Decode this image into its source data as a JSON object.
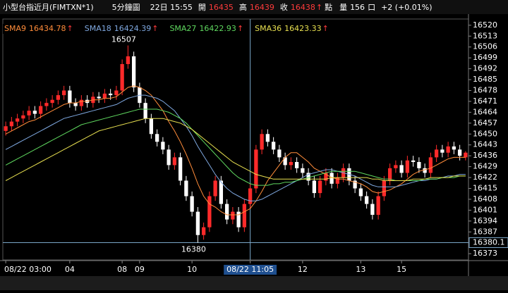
{
  "chart_data": {
    "type": "candlestick",
    "title": "小型台指近月(FIMTXN*1)",
    "period": "5分鐘圖",
    "time": "22日 15:55",
    "quote": [
      {
        "label": "開",
        "value": 16435
      },
      {
        "label": "高",
        "value": 16439
      },
      {
        "label": "收",
        "value": 16438,
        "arrow": "↑"
      }
    ],
    "point_unit": "點",
    "volume_label": "量",
    "volume": 156,
    "volume_unit": "口",
    "change": "+2 (+0.01%)",
    "up_color": "#ff2a2a",
    "down_color": "#ffffff",
    "open": [
      16452,
      16455,
      16458,
      16460,
      16462,
      16465,
      16463,
      16468,
      16470,
      16472,
      16475,
      16478,
      16470,
      16468,
      16472,
      16470,
      16474,
      16473,
      16476,
      16475,
      16478,
      16495,
      16500,
      16480,
      16470,
      16460,
      16450,
      16445,
      16440,
      16430,
      16435,
      16420,
      16410,
      16400,
      16385,
      16390,
      16410,
      16420,
      16405,
      16395,
      16400,
      16390,
      16405,
      16415,
      16440,
      16450,
      16445,
      16440,
      16435,
      16430,
      16432,
      16428,
      16425,
      16420,
      16412,
      16420,
      16425,
      16418,
      16422,
      16428,
      16420,
      16415,
      16410,
      16405,
      16398,
      16410,
      16420,
      16428,
      16430,
      16425,
      16433,
      16432,
      16428,
      16425,
      16435,
      16440,
      16438,
      16442,
      16440,
      16435
    ],
    "high": [
      16458,
      16461,
      16463,
      16465,
      16468,
      16468,
      16471,
      16473,
      16475,
      16478,
      16481,
      16481,
      16473,
      16475,
      16475,
      16477,
      16477,
      16479,
      16479,
      16481,
      16498,
      16507,
      16503,
      16483,
      16473,
      16463,
      16453,
      16448,
      16443,
      16438,
      16438,
      16423,
      16413,
      16403,
      16393,
      16413,
      16423,
      16423,
      16408,
      16403,
      16403,
      16408,
      16418,
      16443,
      16453,
      16453,
      16448,
      16443,
      16438,
      16435,
      16435,
      16431,
      16428,
      16423,
      16423,
      16428,
      16428,
      16425,
      16431,
      16431,
      16423,
      16418,
      16413,
      16408,
      16413,
      16423,
      16431,
      16433,
      16433,
      16436,
      16436,
      16435,
      16431,
      16438,
      16443,
      16443,
      16445,
      16445,
      16443,
      16439
    ],
    "low": [
      16449,
      16452,
      16455,
      16457,
      16459,
      16460,
      16460,
      16465,
      16467,
      16469,
      16472,
      16467,
      16465,
      16465,
      16467,
      16467,
      16470,
      16470,
      16472,
      16472,
      16475,
      16492,
      16477,
      16467,
      16457,
      16447,
      16442,
      16437,
      16427,
      16427,
      16417,
      16407,
      16397,
      16380,
      16382,
      16387,
      16407,
      16402,
      16392,
      16392,
      16387,
      16387,
      16402,
      16412,
      16437,
      16442,
      16437,
      16432,
      16427,
      16427,
      16425,
      16422,
      16417,
      16409,
      16409,
      16417,
      16415,
      16415,
      16419,
      16417,
      16412,
      16407,
      16402,
      16395,
      16395,
      16407,
      16417,
      16425,
      16422,
      16422,
      16429,
      16425,
      16422,
      16422,
      16432,
      16435,
      16435,
      16437,
      16433,
      16433
    ],
    "close": [
      16455,
      16458,
      16460,
      16462,
      16465,
      16463,
      16468,
      16470,
      16472,
      16475,
      16478,
      16470,
      16468,
      16472,
      16470,
      16474,
      16473,
      16476,
      16475,
      16478,
      16495,
      16500,
      16480,
      16470,
      16460,
      16450,
      16445,
      16440,
      16430,
      16435,
      16420,
      16410,
      16400,
      16385,
      16390,
      16410,
      16420,
      16405,
      16395,
      16400,
      16390,
      16405,
      16415,
      16440,
      16450,
      16445,
      16440,
      16435,
      16430,
      16432,
      16428,
      16425,
      16420,
      16412,
      16420,
      16425,
      16418,
      16422,
      16428,
      16420,
      16415,
      16410,
      16405,
      16398,
      16410,
      16420,
      16428,
      16430,
      16425,
      16433,
      16432,
      16428,
      16425,
      16435,
      16440,
      16438,
      16442,
      16440,
      16436,
      16438
    ],
    "series": [
      {
        "name": "SMA9",
        "legend_value": 16434.78,
        "arrow": "↑",
        "color": "#ff8c3a",
        "values": [
          16450,
          16452,
          16454,
          16456,
          16458,
          16459,
          16461,
          16463,
          16465,
          16467,
          16469,
          16470,
          16470,
          16471,
          16471,
          16472,
          16472,
          16473,
          16473,
          16474,
          16477,
          16480,
          16481,
          16480,
          16478,
          16475,
          16470,
          16465,
          16458,
          16452,
          16445,
          16437,
          16428,
          16418,
          16410,
          16405,
          16403,
          16400,
          16398,
          16398,
          16398,
          16400,
          16402,
          16407,
          16413,
          16420,
          16425,
          16430,
          16435,
          16438,
          16438,
          16435,
          16432,
          16428,
          16426,
          16424,
          16422,
          16421,
          16421,
          16420,
          16419,
          16418,
          16416,
          16413,
          16412,
          16413,
          16414,
          16416,
          16418,
          16421,
          16424,
          16426,
          16427,
          16428,
          16430,
          16432,
          16434,
          16435,
          16435,
          16435
        ]
      },
      {
        "name": "SMA18",
        "legend_value": 16424.39,
        "arrow": "↑",
        "color": "#7fa8e0",
        "values": [
          16440,
          16442,
          16444,
          16446,
          16448,
          16450,
          16452,
          16454,
          16456,
          16458,
          16460,
          16461,
          16462,
          16463,
          16464,
          16465,
          16466,
          16467,
          16468,
          16469,
          16471,
          16473,
          16474,
          16475,
          16475,
          16474,
          16473,
          16471,
          16468,
          16465,
          16460,
          16455,
          16449,
          16442,
          16436,
          16430,
          16424,
          16419,
          16415,
          16412,
          16410,
          16408,
          16407,
          16407,
          16408,
          16410,
          16412,
          16414,
          16416,
          16418,
          16420,
          16422,
          16424,
          16425,
          16426,
          16427,
          16427,
          16426,
          16425,
          16424,
          16423,
          16421,
          16419,
          16417,
          16416,
          16416,
          16416,
          16416,
          16417,
          16418,
          16419,
          16420,
          16420,
          16421,
          16421,
          16422,
          16423,
          16423,
          16424,
          16424
        ]
      },
      {
        "name": "SMA27",
        "legend_value": 16422.93,
        "arrow": "↑",
        "color": "#5fd85f",
        "values": [
          16430,
          16432,
          16434,
          16436,
          16438,
          16440,
          16442,
          16444,
          16446,
          16448,
          16450,
          16452,
          16454,
          16456,
          16457,
          16458,
          16459,
          16460,
          16461,
          16462,
          16463,
          16464,
          16465,
          16466,
          16466,
          16466,
          16466,
          16465,
          16464,
          16462,
          16460,
          16457,
          16453,
          16449,
          16445,
          16441,
          16437,
          16433,
          16429,
          16425,
          16422,
          16420,
          16418,
          16417,
          16417,
          16417,
          16418,
          16418,
          16419,
          16419,
          16420,
          16421,
          16422,
          16423,
          16424,
          16425,
          16426,
          16426,
          16426,
          16426,
          16426,
          16425,
          16424,
          16423,
          16422,
          16421,
          16421,
          16420,
          16420,
          16420,
          16420,
          16420,
          16421,
          16421,
          16421,
          16422,
          16422,
          16422,
          16423,
          16423
        ]
      },
      {
        "name": "SMA36",
        "legend_value": 16423.33,
        "arrow": "↑",
        "color": "#e8e050",
        "values": [
          16420,
          16422,
          16424,
          16426,
          16428,
          16430,
          16432,
          16434,
          16436,
          16438,
          16440,
          16442,
          16444,
          16446,
          16448,
          16450,
          16452,
          16453,
          16454,
          16455,
          16456,
          16457,
          16458,
          16459,
          16460,
          16460,
          16460,
          16460,
          16459,
          16458,
          16457,
          16455,
          16453,
          16450,
          16447,
          16444,
          16441,
          16438,
          16435,
          16432,
          16430,
          16428,
          16426,
          16424,
          16423,
          16422,
          16421,
          16421,
          16421,
          16421,
          16421,
          16421,
          16421,
          16421,
          16421,
          16421,
          16422,
          16422,
          16422,
          16422,
          16422,
          16422,
          16422,
          16421,
          16421,
          16420,
          16420,
          16420,
          16420,
          16420,
          16421,
          16421,
          16421,
          16422,
          16422,
          16422,
          16422,
          16423,
          16423,
          16423
        ]
      }
    ],
    "annotations": [
      {
        "x": 21,
        "value": 16507
      },
      {
        "x": 33,
        "value": 16380
      }
    ],
    "crosshair": {
      "x": 42,
      "y": 16380.1
    },
    "xlim": [
      -0.5,
      79.5
    ],
    "xticks": [
      {
        "value": 0,
        "label": "08/22 03:00"
      },
      {
        "value": 11,
        "label": "04"
      },
      {
        "value": 20,
        "label": "08"
      },
      {
        "value": 23,
        "label": "09"
      },
      {
        "value": 32,
        "label": "10"
      },
      {
        "value": 42,
        "label": "08/22 11:05"
      },
      {
        "value": 51,
        "label": "12"
      },
      {
        "value": 61,
        "label": "13"
      },
      {
        "value": 68,
        "label": "15"
      }
    ],
    "ylim": [
      16369,
      16524
    ],
    "yticks": [
      16520,
      16513,
      16506,
      16499,
      16492,
      16485,
      16478,
      16471,
      16464,
      16457,
      16450,
      16443,
      16436,
      16429,
      16422,
      16415,
      16408,
      16401,
      16394,
      16387,
      16380,
      16373
    ]
  }
}
